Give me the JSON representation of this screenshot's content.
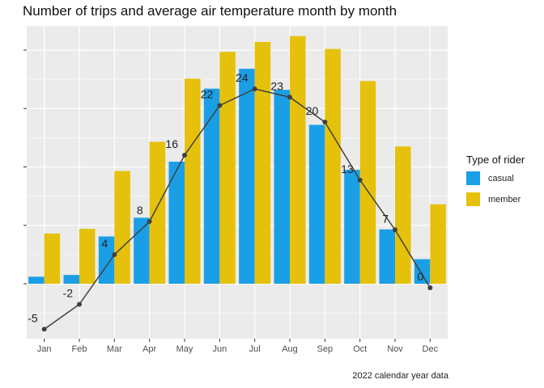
{
  "chart_data": {
    "type": "bar",
    "title": "Number of trips and average air temperature month by month",
    "caption": "2022 calendar year data",
    "categories": [
      "Jan",
      "Feb",
      "Mar",
      "Apr",
      "May",
      "Jun",
      "Jul",
      "Aug",
      "Sep",
      "Oct",
      "Nov",
      "Dec"
    ],
    "series": [
      {
        "name": "casual",
        "color": "#1a9fe6",
        "values": [
          12000,
          15000,
          81000,
          113000,
          209000,
          334000,
          368000,
          332000,
          272000,
          195000,
          93000,
          42000
        ]
      },
      {
        "name": "member",
        "color": "#e5c10b",
        "values": [
          86000,
          94000,
          193000,
          243000,
          351000,
          397000,
          414000,
          424000,
          402000,
          347000,
          235000,
          136000
        ]
      }
    ],
    "ylim": [
      -100000,
      440000
    ],
    "y_ticks": [
      0,
      100000,
      200000,
      300000,
      400000
    ],
    "y_tick_labels_visible": false,
    "line": {
      "label": "average air temperature",
      "color": "#404040",
      "values": [
        -5,
        -2,
        4,
        8,
        16,
        22,
        24,
        23,
        20,
        13,
        7,
        0
      ],
      "labels": [
        "-5",
        "-2",
        "4",
        "8",
        "16",
        "22",
        "24",
        "23",
        "20",
        "13",
        "7",
        "0"
      ]
    },
    "legend": {
      "title": "Type of rider",
      "position": "right"
    },
    "grid": true
  }
}
